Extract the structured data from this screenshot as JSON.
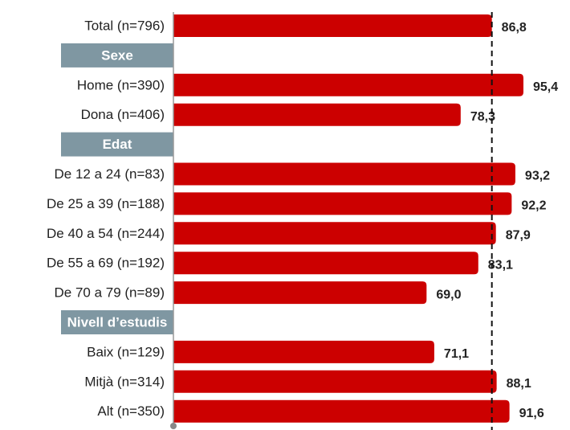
{
  "chart_data": {
    "type": "bar",
    "categories": [
      "Total (n=796)",
      "Sexe",
      "Home (n=390)",
      "Dona (n=406)",
      "Edat",
      "De 12 a 24 (n=83)",
      "De 25 a 39 (n=188)",
      "De 40 a 54 (n=244)",
      "De 55 a 69 (n=192)",
      "De 70 a 79 (n=89)",
      "Nivell d’estudis",
      "Baix (n=129)",
      "Mitjà (n=314)",
      "Alt (n=350)"
    ],
    "values": [
      86.8,
      null,
      95.4,
      78.3,
      null,
      93.2,
      92.2,
      87.9,
      83.1,
      69.0,
      null,
      71.1,
      88.1,
      91.6
    ],
    "value_labels": [
      "86,8",
      null,
      "95,4",
      "78,3",
      null,
      "93,2",
      "92,2",
      "87,9",
      "83,1",
      "69,0",
      null,
      "71,1",
      "88,1",
      "91,6"
    ],
    "color": "#cc0000",
    "header_color": "#7f97a2",
    "xlim": [
      0,
      100
    ]
  }
}
